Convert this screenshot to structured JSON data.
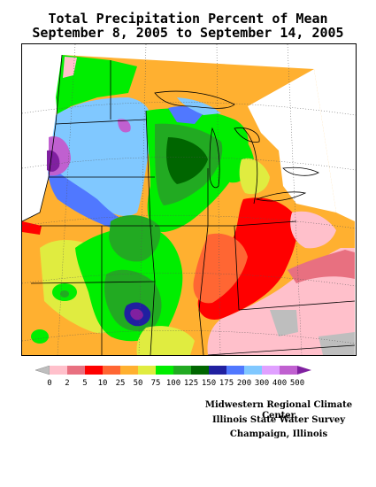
{
  "title": {
    "line1": "Total Precipitation Percent of Mean",
    "line2": "September 8, 2005 to September 14, 2005"
  },
  "legend": {
    "ticks": [
      "0",
      "2",
      "5",
      "10",
      "25",
      "50",
      "75",
      "100",
      "125",
      "150",
      "175",
      "200",
      "300",
      "400",
      "500"
    ],
    "colors": [
      "#bebebe",
      "#ffc0cb",
      "#e87080",
      "#ff0000",
      "#ff6633",
      "#ffb030",
      "#e0ec40",
      "#00ee00",
      "#22aa22",
      "#006600",
      "#2020a0",
      "#5078ff",
      "#80c8ff",
      "#e0a0ff",
      "#c060d0",
      "#8020a0"
    ]
  },
  "credits": [
    "Midwestern Regional Climate Center",
    "Illinois State Water Survey",
    "Champaign, Illinois"
  ]
}
